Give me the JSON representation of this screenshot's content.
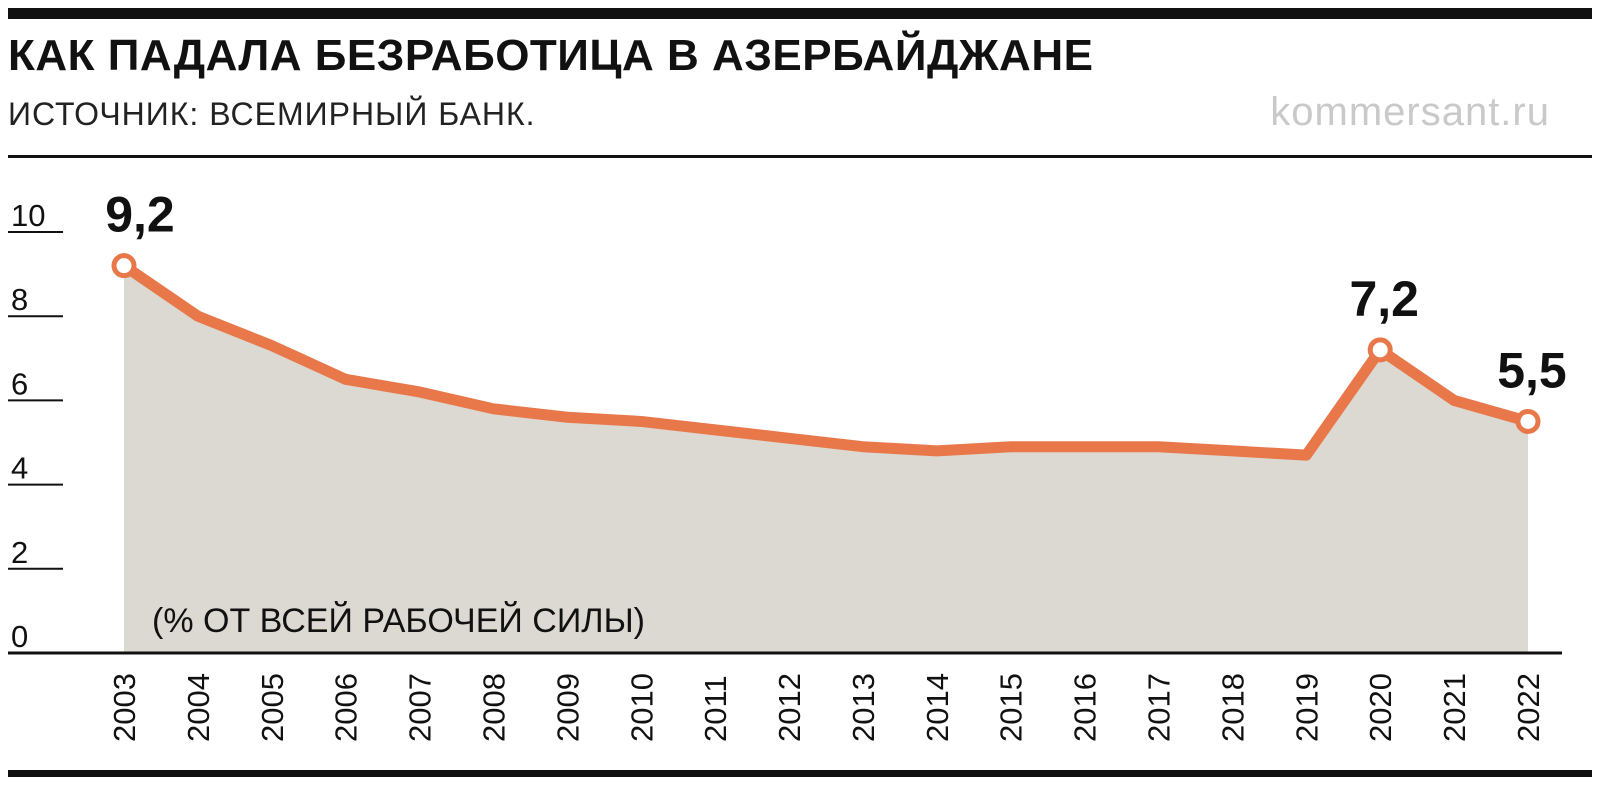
{
  "header": {
    "title": "КАК ПАДАЛА БЕЗРАБОТИЦА В АЗЕРБАЙДЖАНЕ",
    "subtitle": "ИСТОЧНИК: ВСЕМИРНЫЙ БАНК.",
    "site": "kommersant.ru"
  },
  "colors": {
    "line": "#e8784a",
    "area": "#dcd8d2",
    "axis": "#111111"
  },
  "chart_data": {
    "type": "area",
    "unit_label": "(% ОТ ВСЕЙ РАБОЧЕЙ СИЛЫ)",
    "x": [
      "2003",
      "2004",
      "2005",
      "2006",
      "2007",
      "2008",
      "2009",
      "2010",
      "2011",
      "2012",
      "2013",
      "2014",
      "2015",
      "2016",
      "2017",
      "2018",
      "2019",
      "2020",
      "2021",
      "2022"
    ],
    "values": [
      9.2,
      8.0,
      7.3,
      6.5,
      6.2,
      5.8,
      5.6,
      5.5,
      5.3,
      5.1,
      4.9,
      4.8,
      4.9,
      4.9,
      4.9,
      4.8,
      4.7,
      7.2,
      6.0,
      5.5
    ],
    "yticks": [
      "0",
      "2",
      "4",
      "6",
      "8",
      "10"
    ],
    "ylim": [
      0,
      10
    ],
    "annotations": [
      {
        "index": 0,
        "label": "9,2"
      },
      {
        "index": 17,
        "label": "7,2"
      },
      {
        "index": 19,
        "label": "5,5"
      }
    ]
  }
}
